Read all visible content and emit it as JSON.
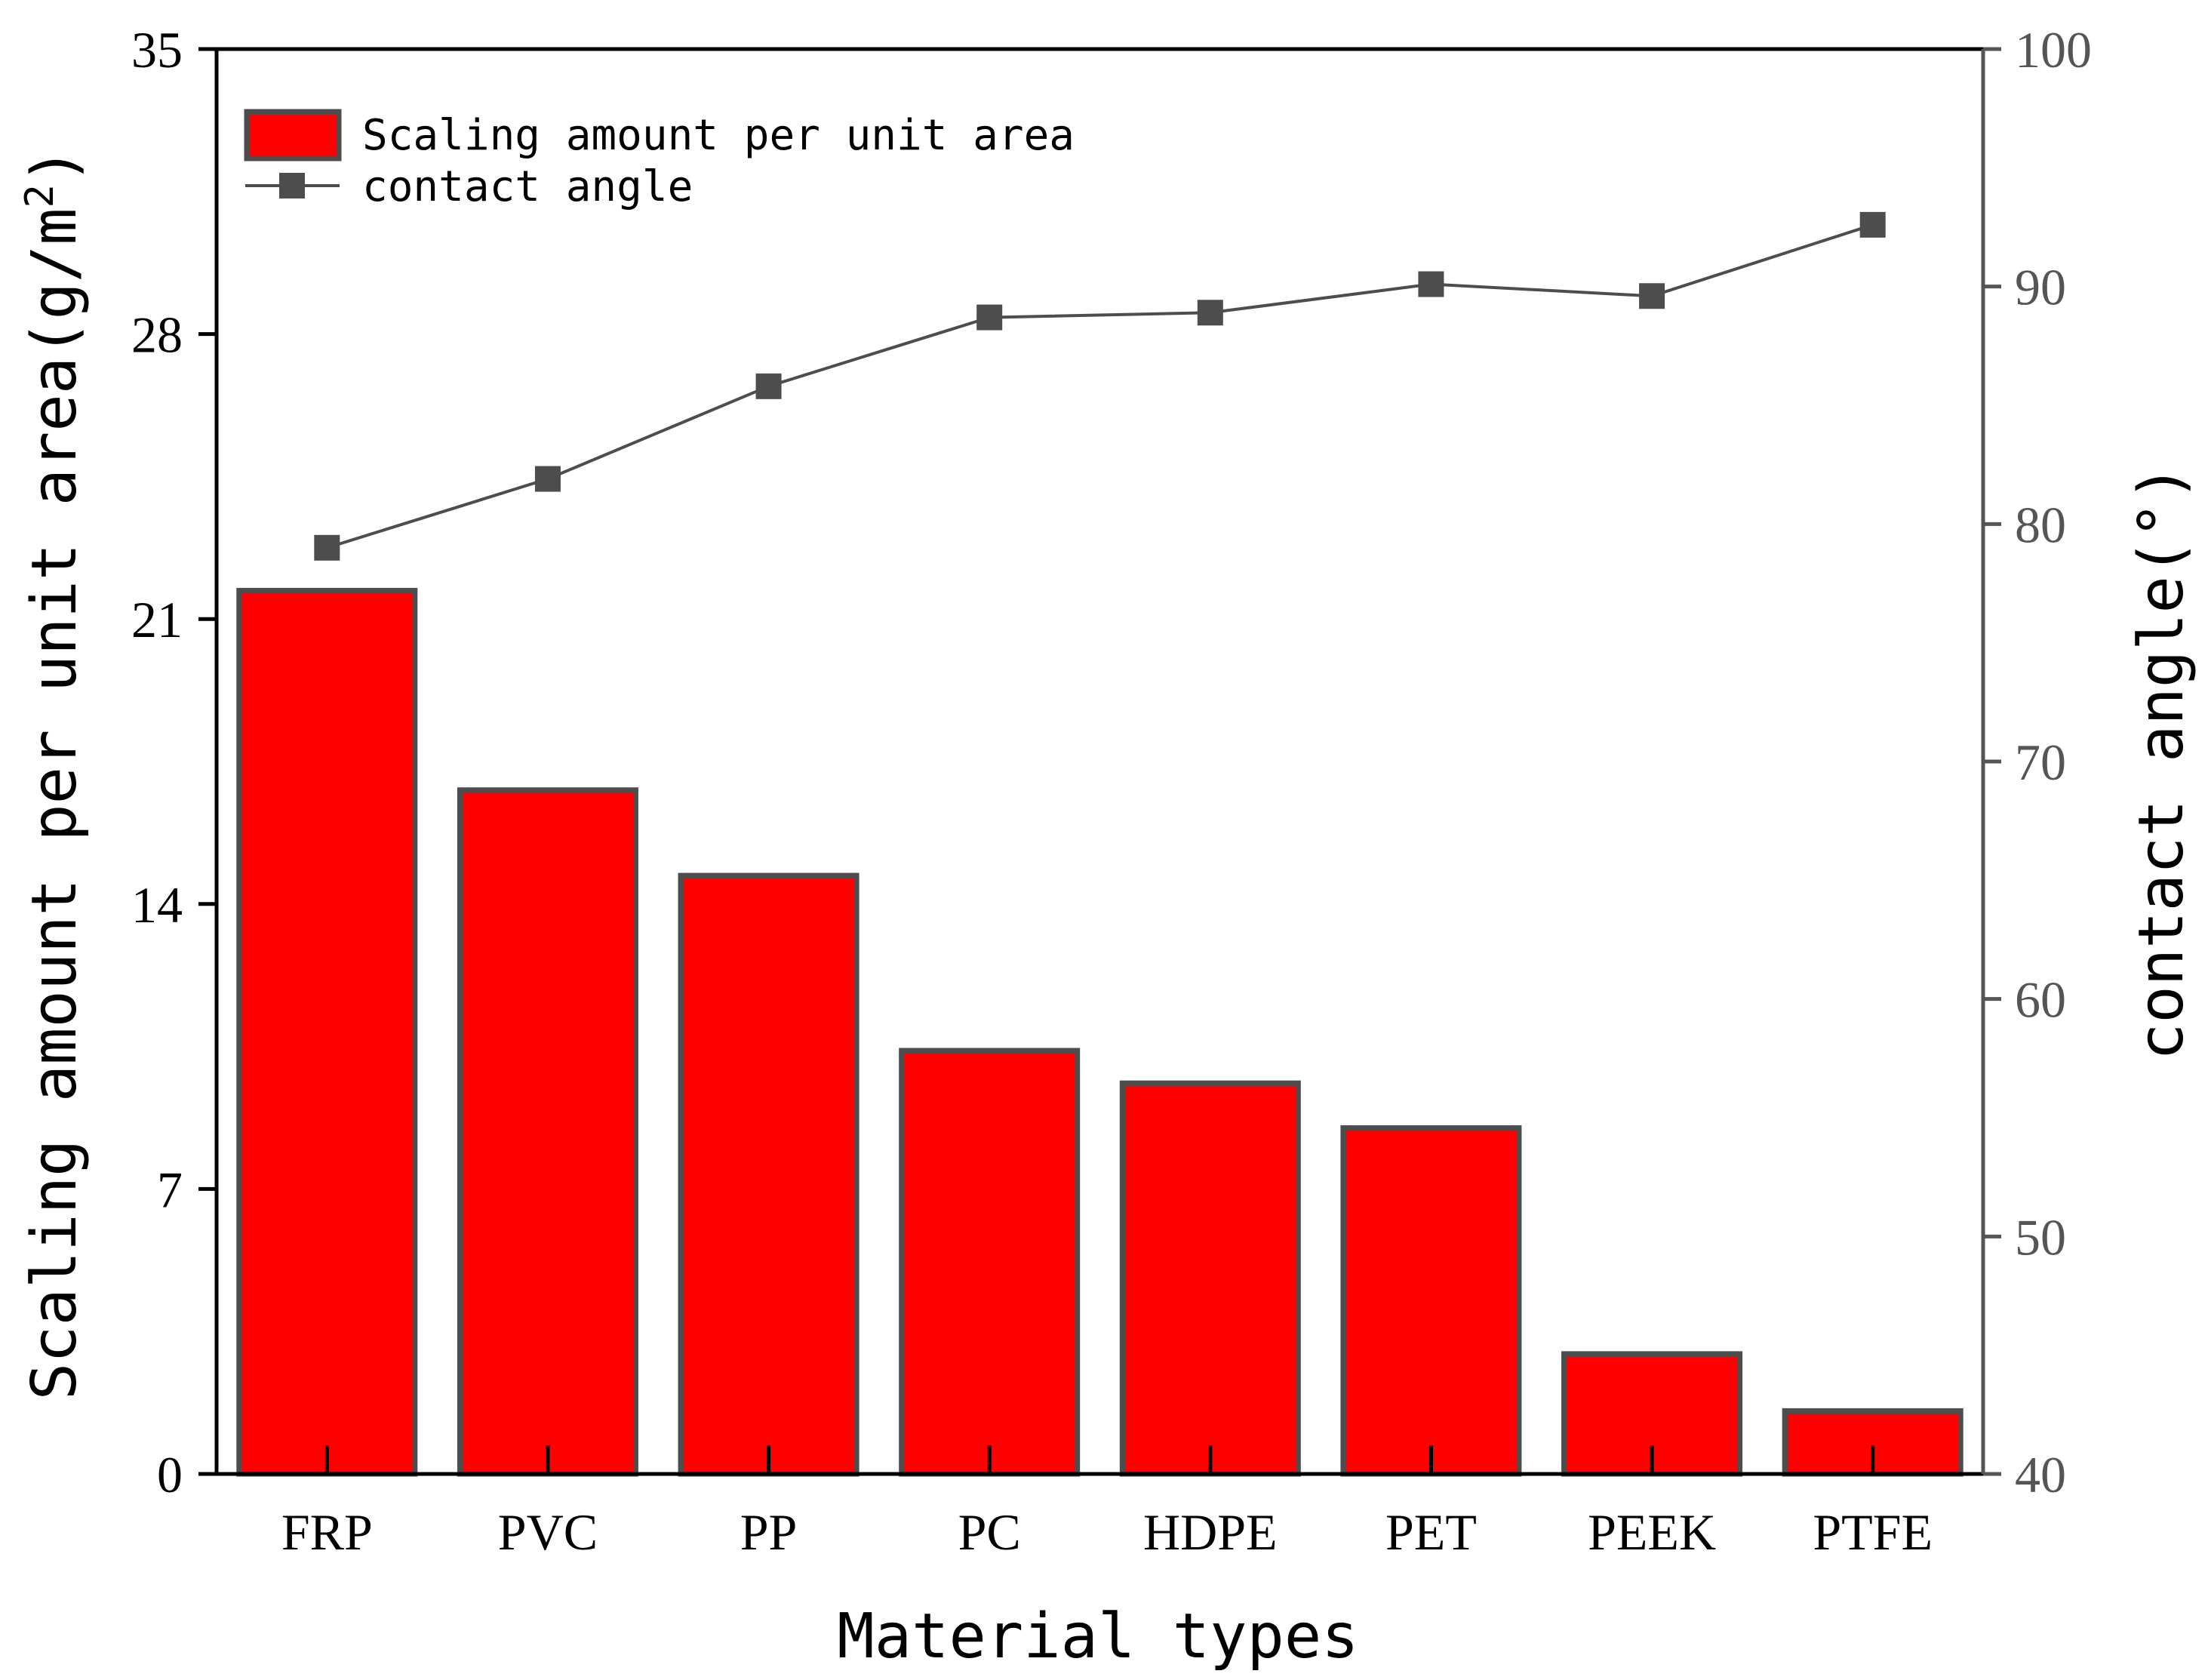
{
  "chart_data": {
    "type": "bar",
    "categories": [
      "FRP",
      "PVC",
      "PP",
      "PC",
      "HDPE",
      "PET",
      "PEEK",
      "PTFE"
    ],
    "series": [
      {
        "name": "Scaling amount per unit area",
        "type": "bar",
        "axis": "left",
        "values": [
          21.7,
          16.8,
          14.7,
          10.4,
          9.6,
          8.5,
          2.95,
          1.55
        ]
      },
      {
        "name": "contact angle",
        "type": "line",
        "axis": "right",
        "values": [
          79.0,
          81.9,
          85.8,
          88.7,
          88.9,
          90.1,
          89.6,
          92.6
        ]
      }
    ],
    "xlabel": "Material types",
    "ylabel_left": {
      "main": "Scaling amount per unit area(g/m",
      "sup": "2",
      "tail": ")"
    },
    "ylabel_right": "contact angle(°)",
    "ylim_left": [
      0,
      35
    ],
    "ylim_right": [
      40,
      100
    ],
    "yticks_left": [
      "0",
      "7",
      "14",
      "21",
      "28",
      "35"
    ],
    "yticks_right": [
      "40",
      "50",
      "60",
      "70",
      "80",
      "90",
      "100"
    ],
    "grid": false,
    "legend_position": "top-left",
    "colors": {
      "bar_fill": "#ff0000",
      "bar_edge": "#4d4d4d",
      "line": "#4d4d4d",
      "left_axis": "#000000",
      "right_axis": "#555555"
    }
  }
}
